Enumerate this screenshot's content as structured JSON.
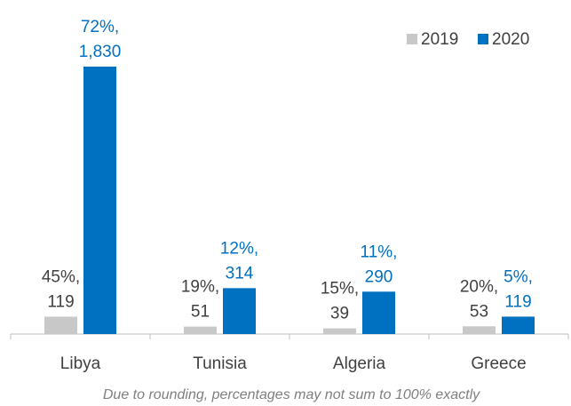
{
  "chart_data": {
    "type": "bar",
    "categories": [
      "Libya",
      "Tunisia",
      "Algeria",
      "Greece"
    ],
    "series": [
      {
        "name": "2019",
        "color": "#c8c8c8",
        "values": [
          119,
          51,
          39,
          53
        ],
        "value_labels": [
          "45%, 119",
          "19%, 51",
          "15%, 39",
          "20%, 53"
        ]
      },
      {
        "name": "2020",
        "color": "#0070c0",
        "values": [
          1830,
          314,
          290,
          119
        ],
        "value_labels": [
          "72%, 1,830",
          "12%, 314",
          "11%, 290",
          "5%, 119"
        ]
      }
    ],
    "ylim": [
      0,
      2000
    ],
    "legend": "top-right",
    "note": "Due to rounding, percentages may not sum to 100% exactly"
  }
}
